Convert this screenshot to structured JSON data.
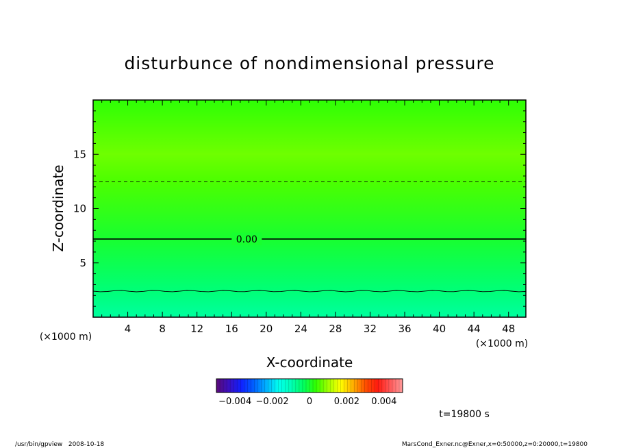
{
  "chart_data": {
    "type": "heatmap",
    "title": "disturbunce of nondimensional pressure",
    "xlabel": "X-coordinate",
    "ylabel": "Z-coordinate",
    "x_unit": "(×1000 m)",
    "y_unit": "(×1000 m)",
    "xlim": [
      0,
      50
    ],
    "ylim": [
      0,
      20
    ],
    "x_ticks": [
      4,
      8,
      12,
      16,
      20,
      24,
      28,
      32,
      36,
      40,
      44,
      48
    ],
    "y_ticks": [
      5,
      10,
      15
    ],
    "z_profile": {
      "z": [
        0,
        2.5,
        7.2,
        12.5,
        15,
        20
      ],
      "value": [
        -0.0008,
        -0.0005,
        0.0,
        0.0005,
        0.0007,
        0.0003
      ]
    },
    "contours": [
      {
        "z": 2.4,
        "value": -0.0005,
        "style": "solid-thin"
      },
      {
        "z": 7.2,
        "value": 0.0,
        "style": "solid",
        "label": "0.00"
      },
      {
        "z": 12.5,
        "value": 0.0005,
        "style": "dashed"
      }
    ],
    "colorbar": {
      "min": -0.005,
      "max": 0.005,
      "tick_values": [
        -0.004,
        -0.002,
        0,
        0.002,
        0.004
      ],
      "tick_labels": [
        "−0.004",
        "−0.002",
        "0",
        "0.002",
        "0.004"
      ]
    }
  },
  "time_label": "t=19800 s",
  "footer": {
    "left": "/usr/bin/gpview   2008-10-18",
    "right": "MarsCond_Exner.nc@Exner,x=0:50000,z=0:20000,t=19800"
  },
  "colors": {
    "palette": [
      "#5a0a78",
      "#3a10c0",
      "#1020ff",
      "#0060ff",
      "#00b0ff",
      "#00ffee",
      "#00ffb8",
      "#00ff60",
      "#30ff00",
      "#a0ff00",
      "#ffff00",
      "#ffb000",
      "#ff5000",
      "#ff1a10",
      "#ff5a5a",
      "#ff9a9a"
    ]
  }
}
